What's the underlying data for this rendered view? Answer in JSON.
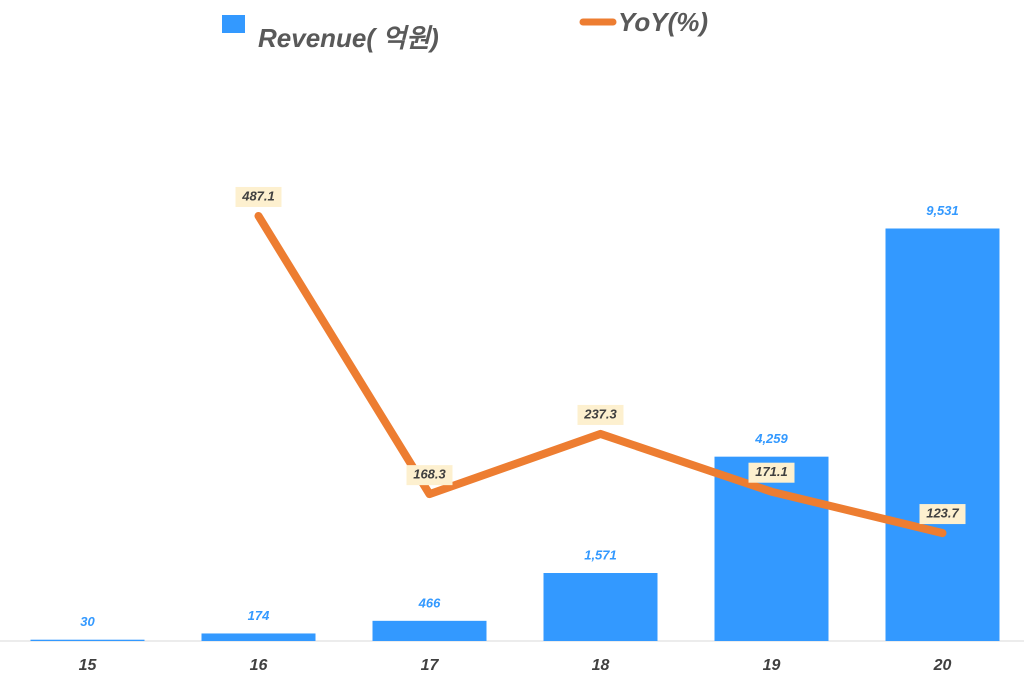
{
  "chart_data": {
    "type": "combo",
    "categories": [
      "15",
      "16",
      "17",
      "18",
      "19",
      "20"
    ],
    "series": [
      {
        "name": "Revenue( 억원)",
        "type": "bar",
        "color": "#3399ff",
        "values": [
          30,
          174,
          466,
          1571,
          4259,
          9531
        ],
        "value_labels": [
          "30",
          "174",
          "466",
          "1,571",
          "4,259",
          "9,531"
        ]
      },
      {
        "name": "YoY(%)",
        "type": "line",
        "axis": "y2",
        "color": "#ed7d31",
        "values": [
          null,
          487.1,
          168.3,
          237.3,
          171.1,
          123.7
        ]
      }
    ],
    "ylim": [
      0,
      12500
    ],
    "y2lim": [
      0,
      620
    ],
    "legend": "top"
  }
}
